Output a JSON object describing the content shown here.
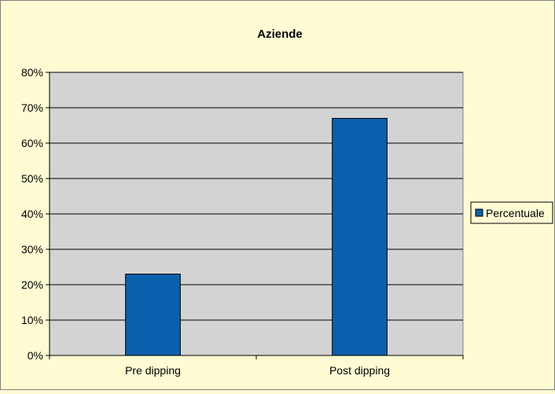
{
  "chart_data": {
    "type": "bar",
    "title": "Aziende",
    "xlabel": "",
    "ylabel": "",
    "categories": [
      "Pre dipping",
      "Post dipping"
    ],
    "series": [
      {
        "name": "Percentuale",
        "values": [
          23,
          67
        ],
        "color": "#0b60ad"
      }
    ],
    "ylim": [
      0,
      80
    ],
    "yticks": [
      0,
      10,
      20,
      30,
      40,
      50,
      60,
      70,
      80
    ],
    "ytick_labels": [
      "0%",
      "10%",
      "20%",
      "30%",
      "40%",
      "50%",
      "60%",
      "70%",
      "80%"
    ],
    "grid": true,
    "legend_position": "right",
    "plot_background": "#d3d3d3",
    "page_background": "#fffcd4"
  }
}
